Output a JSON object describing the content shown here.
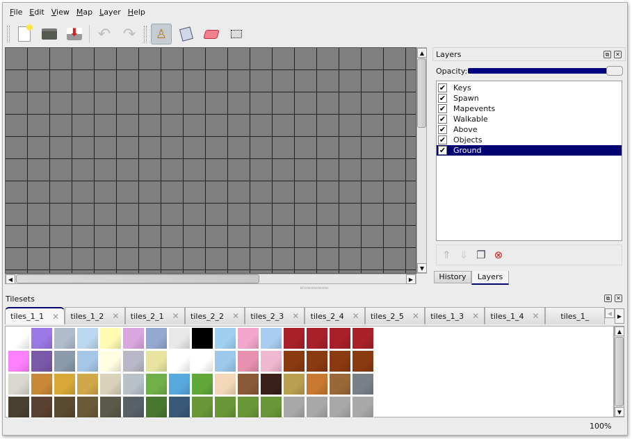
{
  "menu": [
    "File",
    "Edit",
    "View",
    "Map",
    "Layer",
    "Help"
  ],
  "toolbar": {
    "buttons": [
      {
        "name": "new-icon",
        "glyph": "🗋"
      },
      {
        "name": "open-icon",
        "glyph": "🗀"
      },
      {
        "name": "save-icon",
        "glyph": "⬇"
      },
      {
        "name": "undo-icon",
        "glyph": "↶"
      },
      {
        "name": "redo-icon",
        "glyph": "↷"
      },
      {
        "name": "stamp-brush-icon",
        "glyph": "♙"
      },
      {
        "name": "bucket-fill-icon",
        "glyph": "🪣"
      },
      {
        "name": "eraser-icon",
        "glyph": "▰"
      },
      {
        "name": "rect-select-icon",
        "glyph": "⬚"
      }
    ],
    "active": "stamp-brush-icon"
  },
  "layers_panel": {
    "title": "Layers",
    "opacity_label": "Opacity:",
    "opacity": 1.0,
    "layers": [
      {
        "name": "Keys",
        "visible": true
      },
      {
        "name": "Spawn",
        "visible": true
      },
      {
        "name": "Mapevents",
        "visible": true
      },
      {
        "name": "Walkable",
        "visible": true
      },
      {
        "name": "Above",
        "visible": true
      },
      {
        "name": "Objects",
        "visible": true
      },
      {
        "name": "Ground",
        "visible": true,
        "selected": true
      }
    ],
    "tabs": [
      "History",
      "Layers"
    ],
    "active_tab": "Layers"
  },
  "tilesets_panel": {
    "title": "Tilesets",
    "tabs": [
      "tiles_1_1",
      "tiles_1_2",
      "tiles_2_1",
      "tiles_2_2",
      "tiles_2_3",
      "tiles_2_4",
      "tiles_2_5",
      "tiles_1_3",
      "tiles_1_4",
      "tiles_1_"
    ],
    "active_tab": "tiles_1_1",
    "tile_colors": [
      [
        "#ffffff",
        "#9a78e6",
        "#aebccb",
        "#bcd8f0",
        "#fffbb0",
        "#d9a6e0",
        "#93a9cf",
        "#e8e8e8",
        "#000000",
        "#9fd0f2",
        "#f2a6cc",
        "#a8cdf0",
        "#a8202a",
        "#a8202a",
        "#a8202a",
        "#a8202a"
      ],
      [
        "#ff80ff",
        "#7a5aa8",
        "#8a9aaa",
        "#a6c6e6",
        "#fffce0",
        "#b8b8c8",
        "#e8e4a0",
        "#ffffff",
        "#ffffff",
        "#9cc8ec",
        "#e890b0",
        "#f0b8d0",
        "#8a3a10",
        "#8a3a10",
        "#8a3a10",
        "#8a3a10"
      ],
      [
        "#d8d8d0",
        "#c88838",
        "#d8a838",
        "#d0a848",
        "#d8d0b8",
        "#b8c0c8",
        "#70b048",
        "#58a8e0",
        "#60a838",
        "#f2d8b8",
        "#8a5a38",
        "#3a2018",
        "#b8a050",
        "#c87830",
        "#9a6838",
        "#7a8088"
      ],
      [
        "#4a4030",
        "#5a4030",
        "#5a4a30",
        "#6a5a38",
        "#5a5848",
        "#586068",
        "#487830",
        "#3a5878",
        "#6a9838",
        "#6a9838",
        "#6a9838",
        "#6a9838",
        "#a8a8a8",
        "#a8a8a8",
        "#a8a8a8",
        "#a8a8a8"
      ]
    ]
  },
  "status": {
    "zoom": "100%"
  }
}
